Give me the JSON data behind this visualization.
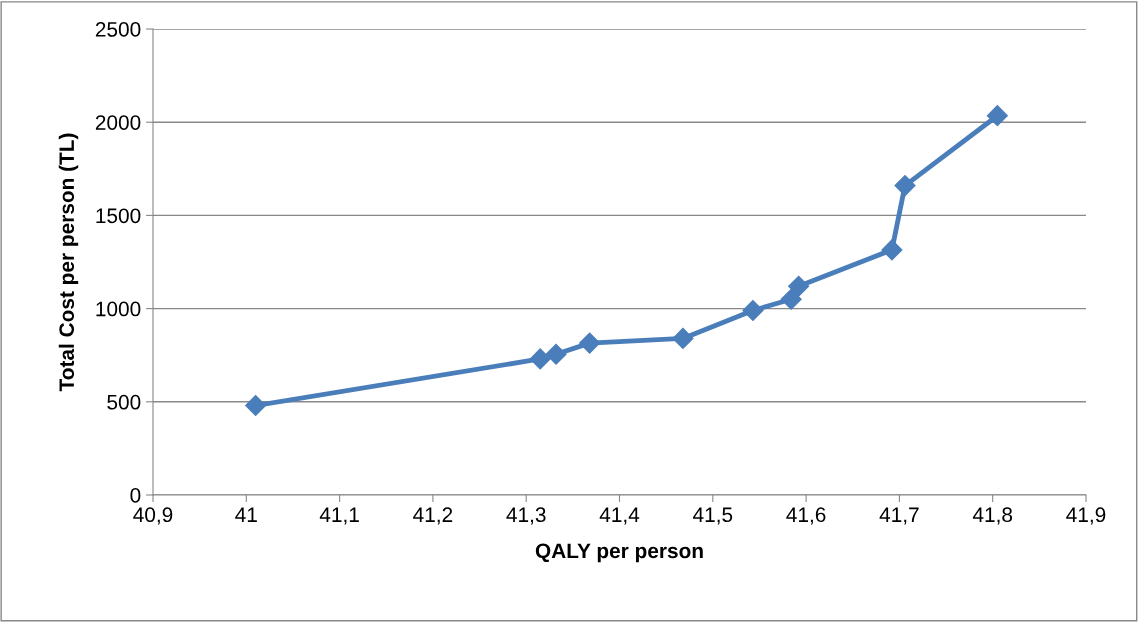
{
  "chart_data": {
    "type": "line",
    "xlabel": "QALY per person",
    "ylabel": "Total Cost per person (TL)",
    "x": [
      41.01,
      41.315,
      41.332,
      41.368,
      41.468,
      41.543,
      41.584,
      41.592,
      41.692,
      41.706,
      41.805
    ],
    "series": [
      {
        "color": "#4a7ebb",
        "values": [
          480,
          730,
          755,
          815,
          840,
          990,
          1050,
          1120,
          1315,
          1660,
          2035
        ]
      }
    ],
    "xlim": [
      40.9,
      41.9
    ],
    "xticks": [
      {
        "value": 40.9,
        "label": "40,9"
      },
      41,
      {
        "value": 41.1,
        "label": "41,1"
      },
      {
        "value": 41.2,
        "label": "41,2"
      },
      {
        "value": 41.3,
        "label": "41,3"
      },
      {
        "value": 41.4,
        "label": "41,4"
      },
      {
        "value": 41.5,
        "label": "41,5"
      },
      {
        "value": 41.6,
        "label": "41,6"
      },
      {
        "value": 41.7,
        "label": "41,7"
      },
      {
        "value": 41.8,
        "label": "41,8"
      },
      {
        "value": 41.9,
        "label": "41,9"
      }
    ],
    "ylim": [
      0,
      2500
    ],
    "yticks": [
      0,
      500,
      1000,
      1500,
      2000,
      2500
    ],
    "grid": "y",
    "legend": false,
    "marker": "diamond",
    "line_style": "solid"
  }
}
